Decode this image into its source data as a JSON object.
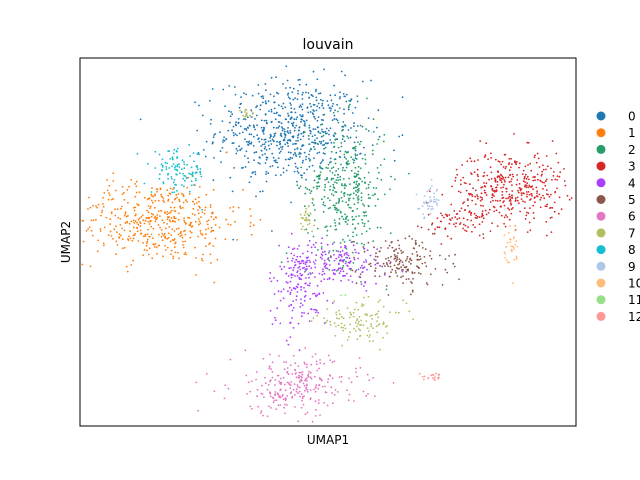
{
  "chart_data": {
    "type": "scatter",
    "title": "louvain",
    "xlabel": "UMAP1",
    "ylabel": "UMAP2",
    "xlim": [
      0,
      100
    ],
    "ylim": [
      0,
      100
    ],
    "grid": false,
    "ticks": false,
    "legend_position": "right-outside",
    "legend_title": "",
    "series": [
      {
        "name": "0",
        "color": "#1f77b4",
        "clusters": [
          {
            "cx": 42.5,
            "cy": 80.0,
            "sx": 7.5,
            "sy": 7.0,
            "n": 650
          }
        ]
      },
      {
        "name": "1",
        "color": "#ff7f0e",
        "clusters": [
          {
            "cx": 15.5,
            "cy": 55.5,
            "sx": 8.5,
            "sy": 5.5,
            "n": 480
          }
        ]
      },
      {
        "name": "2",
        "color": "#279e68",
        "clusters": [
          {
            "cx": 53.5,
            "cy": 64.5,
            "sx": 4.0,
            "sy": 9.5,
            "n": 380
          }
        ]
      },
      {
        "name": "3",
        "color": "#d62728",
        "clusters": [
          {
            "cx": 87.0,
            "cy": 65.0,
            "sx": 5.5,
            "sy": 5.0,
            "n": 380
          },
          {
            "cx": 77.0,
            "cy": 56.0,
            "sx": 3.5,
            "sy": 2.5,
            "n": 80
          }
        ]
      },
      {
        "name": "4",
        "color": "#aa40fc",
        "clusters": [
          {
            "cx": 44.0,
            "cy": 38.0,
            "sx": 3.0,
            "sy": 6.0,
            "n": 150
          },
          {
            "cx": 52.0,
            "cy": 44.5,
            "sx": 5.0,
            "sy": 3.0,
            "n": 170
          }
        ]
      },
      {
        "name": "5",
        "color": "#8c564b",
        "clusters": [
          {
            "cx": 65.0,
            "cy": 44.5,
            "sx": 4.5,
            "sy": 3.5,
            "n": 170
          }
        ]
      },
      {
        "name": "6",
        "color": "#e377c2",
        "clusters": [
          {
            "cx": 43.5,
            "cy": 11.0,
            "sx": 6.5,
            "sy": 4.0,
            "n": 260
          }
        ]
      },
      {
        "name": "7",
        "color": "#b5bd61",
        "clusters": [
          {
            "cx": 56.5,
            "cy": 28.5,
            "sx": 4.5,
            "sy": 2.5,
            "n": 110
          },
          {
            "cx": 45.5,
            "cy": 56.0,
            "sx": 0.8,
            "sy": 2.0,
            "n": 30
          },
          {
            "cx": 33.5,
            "cy": 85.0,
            "sx": 0.8,
            "sy": 0.5,
            "n": 15
          }
        ]
      },
      {
        "name": "8",
        "color": "#17becf",
        "clusters": [
          {
            "cx": 20.0,
            "cy": 69.0,
            "sx": 2.8,
            "sy": 3.0,
            "n": 110
          }
        ]
      },
      {
        "name": "9",
        "color": "#aec7e8",
        "clusters": [
          {
            "cx": 70.5,
            "cy": 61.0,
            "sx": 1.0,
            "sy": 2.0,
            "n": 45
          }
        ]
      },
      {
        "name": "10",
        "color": "#ffbb78",
        "clusters": [
          {
            "cx": 87.0,
            "cy": 48.0,
            "sx": 0.8,
            "sy": 3.5,
            "n": 35
          }
        ]
      },
      {
        "name": "11",
        "color": "#98df8a",
        "clusters": [
          {
            "cx": 53.0,
            "cy": 35.0,
            "sx": 0.5,
            "sy": 0.5,
            "n": 2
          }
        ]
      },
      {
        "name": "12",
        "color": "#ff9896",
        "clusters": [
          {
            "cx": 71.5,
            "cy": 13.5,
            "sx": 1.2,
            "sy": 0.6,
            "n": 20
          }
        ]
      }
    ]
  },
  "legend_labels_visible": [
    "0",
    "1",
    "2",
    "3",
    "4",
    "5",
    "6",
    "7",
    "8",
    "9",
    "10",
    "11",
    "12"
  ]
}
